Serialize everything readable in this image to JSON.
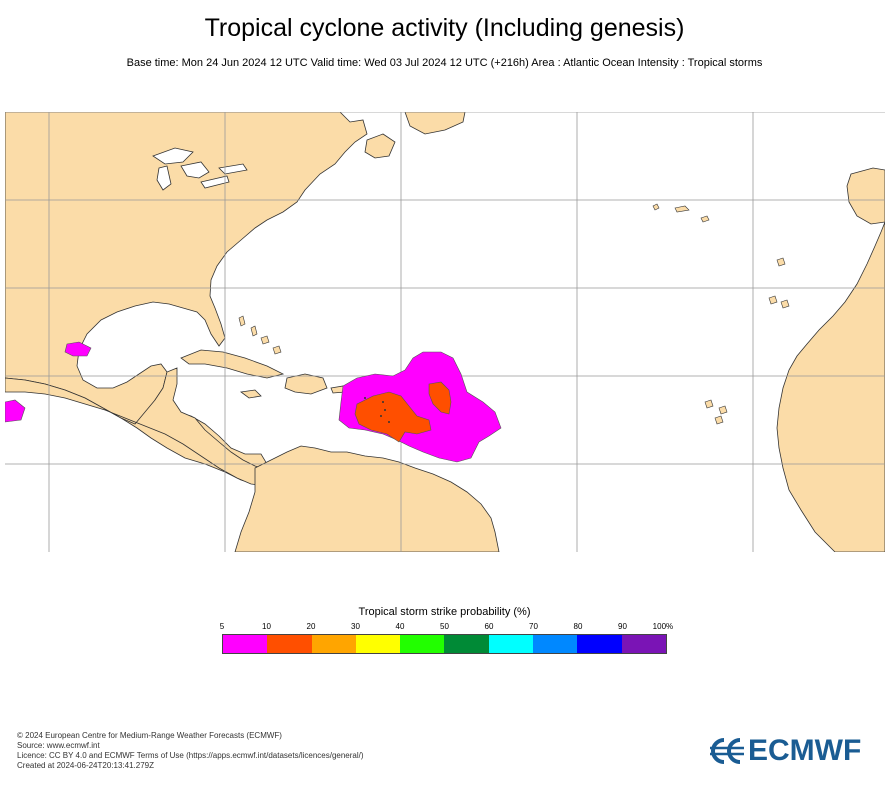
{
  "header": {
    "title": "Tropical cyclone activity (Including genesis)",
    "subtitle": "Base time: Mon 24 Jun 2024 12 UTC Valid time: Wed 03 Jul 2024 12 UTC (+216h) Area : Atlantic Ocean Intensity : Tropical storms"
  },
  "colors": {
    "land": "#fbdca8",
    "ocean": "#ffffff",
    "coast": "#333333",
    "grid": "#aaaaaa"
  },
  "legend": {
    "title": "Tropical storm strike probability (%)",
    "ticks": [
      "5",
      "10",
      "20",
      "30",
      "40",
      "50",
      "60",
      "70",
      "80",
      "90",
      "100%"
    ],
    "colors": [
      "#ff00ff",
      "#ff4f00",
      "#ffa500",
      "#ffff00",
      "#22ff00",
      "#008a36",
      "#00ffff",
      "#0088ff",
      "#0000ff",
      "#7a14b5"
    ]
  },
  "footer": {
    "lines": [
      "© 2024 European Centre for Medium-Range Weather Forecasts (ECMWF)",
      "Source: www.ecmwf.int",
      "Licence: CC BY 4.0 and ECMWF Terms of Use (https://apps.ecmwf.int/datasets/licences/general/)",
      "Created at 2024-06-24T20:13:41.279Z"
    ]
  },
  "logo": {
    "text": "ECMWF",
    "icon": "ecmwf-logo-icon"
  }
}
